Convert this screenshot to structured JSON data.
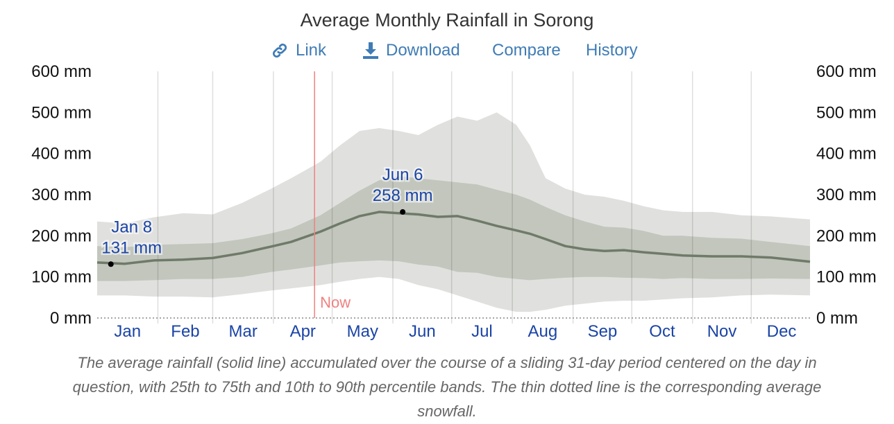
{
  "title": "Average Monthly Rainfall in Sorong",
  "toolbar": {
    "link_label": "Link",
    "download_label": "Download",
    "compare_label": "Compare",
    "history_label": "History"
  },
  "caption": "The average rainfall (solid line) accumulated over the course of a sliding 31-day period centered on the day in question, with 25th to 75th and 10th to 90th percentile bands. The thin dotted line is the corresponding average snowfall.",
  "colors": {
    "accent": "#3f7cb5",
    "month_label": "#1a44a6",
    "band_outer": "#e0e1de",
    "band_inner": "#c2c6bd",
    "mean_line": "#6f7a69",
    "now_line": "#f08080"
  },
  "chart_data": {
    "type": "area",
    "title": "Average Monthly Rainfall in Sorong",
    "x_unit": "day of year",
    "y_unit": "mm",
    "ylim": [
      0,
      600
    ],
    "y_ticks": [
      "0 mm",
      "100 mm",
      "200 mm",
      "300 mm",
      "400 mm",
      "500 mm",
      "600 mm"
    ],
    "months": [
      "Jan",
      "Feb",
      "Mar",
      "Apr",
      "May",
      "Jun",
      "Jul",
      "Aug",
      "Sep",
      "Oct",
      "Nov",
      "Dec"
    ],
    "grid": true,
    "now": {
      "label": "Now",
      "day": 112
    },
    "x": [
      1,
      15,
      30,
      45,
      60,
      75,
      90,
      100,
      115,
      125,
      135,
      145,
      155,
      165,
      175,
      185,
      195,
      205,
      215,
      222,
      230,
      240,
      250,
      260,
      270,
      280,
      290,
      300,
      315,
      330,
      345,
      365
    ],
    "mean": [
      135,
      132,
      140,
      142,
      146,
      158,
      174,
      185,
      210,
      230,
      248,
      258,
      255,
      252,
      246,
      248,
      237,
      224,
      213,
      205,
      192,
      175,
      167,
      163,
      165,
      160,
      156,
      152,
      150,
      150,
      147,
      137
    ],
    "p10": [
      55,
      55,
      52,
      52,
      50,
      58,
      67,
      72,
      80,
      88,
      95,
      100,
      95,
      80,
      70,
      55,
      40,
      25,
      15,
      15,
      20,
      30,
      35,
      40,
      42,
      42,
      45,
      48,
      50,
      55,
      57,
      55
    ],
    "p25": [
      90,
      90,
      92,
      95,
      95,
      100,
      112,
      118,
      128,
      135,
      138,
      140,
      138,
      130,
      125,
      112,
      110,
      100,
      95,
      92,
      95,
      98,
      100,
      100,
      98,
      97,
      95,
      97,
      95,
      95,
      96,
      95
    ],
    "p75": [
      175,
      172,
      178,
      180,
      182,
      192,
      206,
      218,
      250,
      280,
      310,
      335,
      345,
      340,
      335,
      330,
      325,
      312,
      300,
      288,
      270,
      250,
      235,
      222,
      220,
      212,
      200,
      200,
      195,
      193,
      185,
      175
    ],
    "p90": [
      235,
      230,
      245,
      255,
      252,
      280,
      315,
      340,
      380,
      420,
      455,
      462,
      455,
      445,
      470,
      490,
      480,
      500,
      470,
      420,
      340,
      315,
      300,
      295,
      285,
      272,
      262,
      258,
      258,
      250,
      247,
      240
    ],
    "annotations": [
      {
        "date": "Jan 8",
        "value": "131 mm",
        "day": 8,
        "mm": 131
      },
      {
        "date": "Jun 6",
        "value": "258 mm",
        "day": 157,
        "mm": 258
      }
    ]
  }
}
